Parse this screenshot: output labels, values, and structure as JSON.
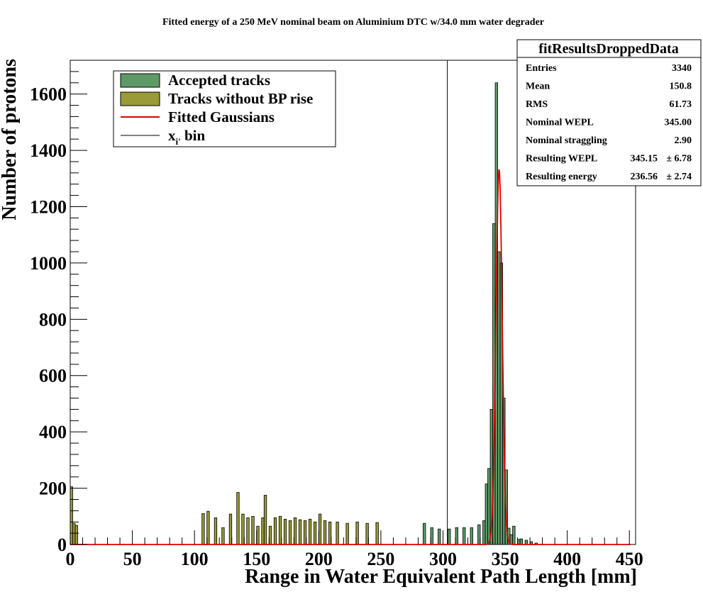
{
  "chart_data": {
    "type": "histogram",
    "title": "Fitted energy of a 250 MeV nominal beam on Aluminium DTC w/34.0 mm water degrader",
    "xlabel": "Range in Water Equivalent Path Length [mm]",
    "ylabel": "Number of protons",
    "xlim": [
      0,
      455
    ],
    "ylim": [
      0,
      1720
    ],
    "x_ticks": [
      0,
      50,
      100,
      150,
      200,
      250,
      300,
      350,
      400,
      450
    ],
    "y_ticks": [
      0,
      200,
      400,
      600,
      800,
      1000,
      1200,
      1400,
      1600
    ],
    "grid": false,
    "legend_position": "top-left",
    "colors": {
      "accepted": "#5e9a68",
      "no_bp_rise": "#9a9a38",
      "fit": "#dd0000",
      "cutoff_line": "#000000"
    },
    "legend": [
      {
        "label": "Accepted tracks",
        "kind": "box",
        "color": "#5e9a68"
      },
      {
        "label": "Tracks without BP rise",
        "kind": "box",
        "color": "#9a9a38"
      },
      {
        "label": "Fitted Gaussians",
        "kind": "line",
        "color": "#dd0000"
      },
      {
        "label": "x",
        "sub": "i'",
        "tail": " bin",
        "kind": "line",
        "color": "#000000"
      }
    ],
    "cutoff_x": 303.5,
    "series": [
      {
        "name": "Tracks without BP rise",
        "bin_width": 2,
        "bars": [
          {
            "x": 0,
            "y": 205
          },
          {
            "x": 2,
            "y": 75
          },
          {
            "x": 4,
            "y": 68
          },
          {
            "x": 106,
            "y": 110
          },
          {
            "x": 110,
            "y": 118
          },
          {
            "x": 116,
            "y": 95
          },
          {
            "x": 122,
            "y": 60
          },
          {
            "x": 128,
            "y": 108
          },
          {
            "x": 134,
            "y": 185
          },
          {
            "x": 138,
            "y": 108
          },
          {
            "x": 142,
            "y": 95
          },
          {
            "x": 146,
            "y": 100
          },
          {
            "x": 150,
            "y": 65
          },
          {
            "x": 154,
            "y": 95
          },
          {
            "x": 156,
            "y": 175
          },
          {
            "x": 160,
            "y": 65
          },
          {
            "x": 164,
            "y": 95
          },
          {
            "x": 168,
            "y": 100
          },
          {
            "x": 172,
            "y": 90
          },
          {
            "x": 176,
            "y": 85
          },
          {
            "x": 180,
            "y": 95
          },
          {
            "x": 184,
            "y": 88
          },
          {
            "x": 188,
            "y": 85
          },
          {
            "x": 192,
            "y": 90
          },
          {
            "x": 196,
            "y": 80
          },
          {
            "x": 200,
            "y": 108
          },
          {
            "x": 204,
            "y": 85
          },
          {
            "x": 208,
            "y": 80
          },
          {
            "x": 214,
            "y": 80
          },
          {
            "x": 222,
            "y": 75
          },
          {
            "x": 230,
            "y": 80
          },
          {
            "x": 238,
            "y": 75
          },
          {
            "x": 246,
            "y": 78
          }
        ]
      },
      {
        "name": "Accepted tracks",
        "bin_width": 2,
        "bars": [
          {
            "x": 284,
            "y": 75
          },
          {
            "x": 290,
            "y": 60
          },
          {
            "x": 296,
            "y": 55
          },
          {
            "x": 304,
            "y": 55
          },
          {
            "x": 310,
            "y": 60
          },
          {
            "x": 316,
            "y": 60
          },
          {
            "x": 322,
            "y": 60
          },
          {
            "x": 328,
            "y": 70
          },
          {
            "x": 332,
            "y": 85
          },
          {
            "x": 334,
            "y": 215
          },
          {
            "x": 336,
            "y": 270
          },
          {
            "x": 338,
            "y": 480
          },
          {
            "x": 340,
            "y": 1140
          },
          {
            "x": 342,
            "y": 1640
          },
          {
            "x": 344,
            "y": 1040
          },
          {
            "x": 346,
            "y": 1000
          },
          {
            "x": 348,
            "y": 520
          },
          {
            "x": 350,
            "y": 265
          },
          {
            "x": 352,
            "y": 58
          },
          {
            "x": 354,
            "y": 35
          },
          {
            "x": 356,
            "y": 65
          },
          {
            "x": 360,
            "y": 18
          },
          {
            "x": 362,
            "y": 20
          },
          {
            "x": 366,
            "y": 15
          },
          {
            "x": 370,
            "y": 10
          },
          {
            "x": 374,
            "y": 5
          }
        ]
      }
    ],
    "fit": {
      "name": "Fitted Gaussians",
      "mean": 345.15,
      "sigma": 2.5,
      "amplitude": 1335
    }
  },
  "stats_box": {
    "title": "fitResultsDroppedData",
    "rows": [
      {
        "label": "Entries",
        "value": "3340",
        "error": ""
      },
      {
        "label": "Mean",
        "value": "150.8",
        "error": ""
      },
      {
        "label": "RMS",
        "value": "61.73",
        "error": ""
      },
      {
        "label": "Nominal WEPL",
        "value": "345.00",
        "error": ""
      },
      {
        "label": "Nominal straggling",
        "value": "2.90",
        "error": ""
      },
      {
        "label": "Resulting WEPL",
        "value": "345.15",
        "error": "± 6.78"
      },
      {
        "label": "Resulting energy",
        "value": "236.56",
        "error": "± 2.74"
      }
    ]
  }
}
